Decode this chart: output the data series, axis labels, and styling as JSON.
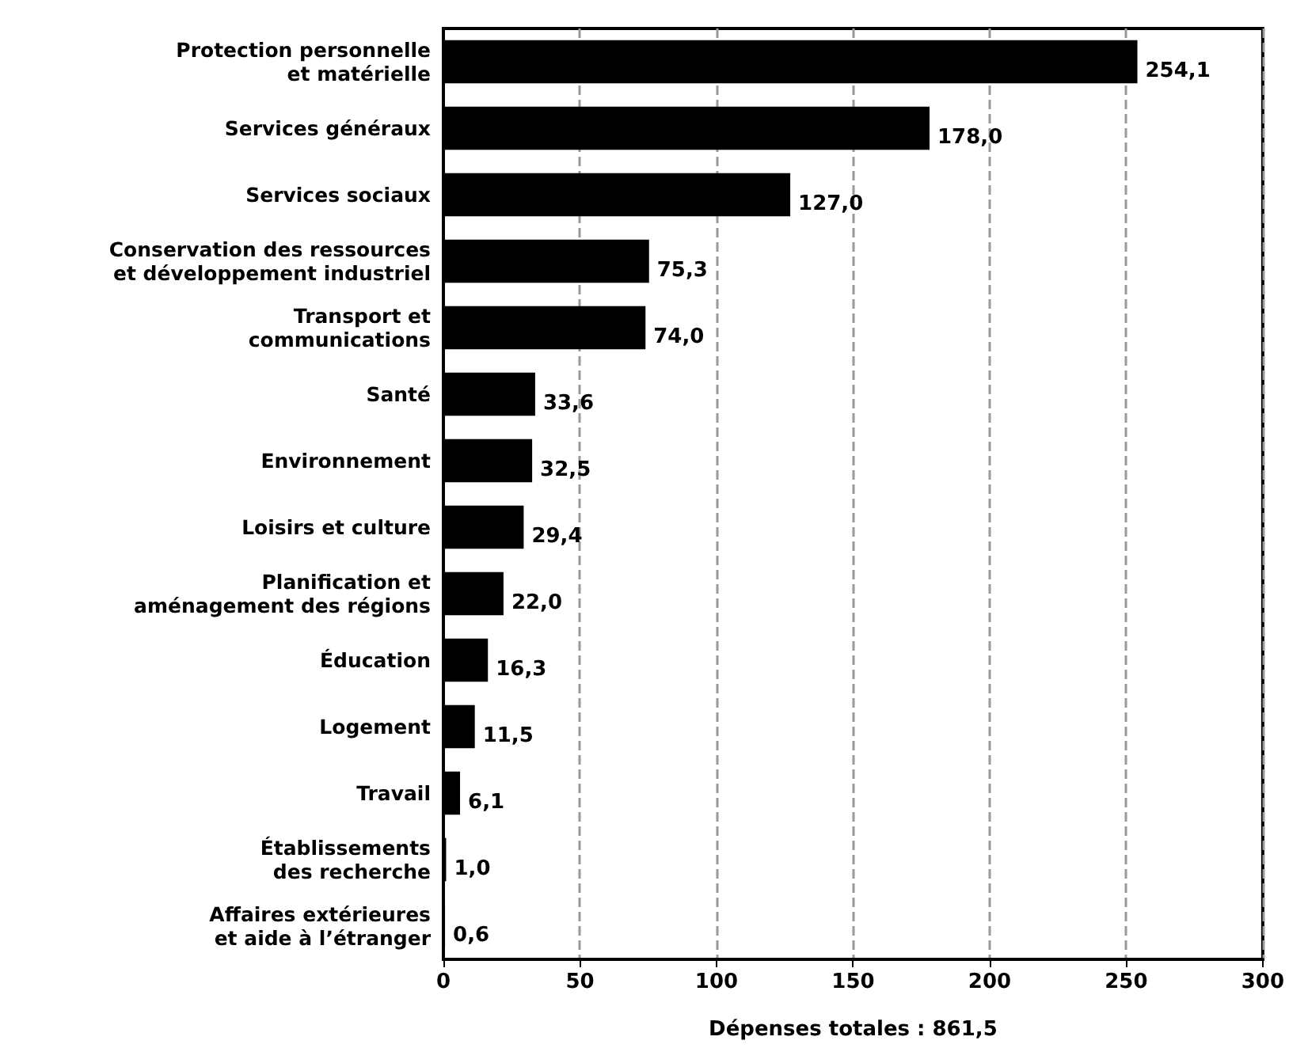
{
  "chart_data": {
    "type": "bar",
    "orientation": "horizontal",
    "xlabel": "Dépenses totales : 861,5",
    "categories": [
      "Protection personnelle\net matérielle",
      "Services généraux",
      "Services sociaux",
      "Conservation des ressources\net développement industriel",
      "Transport et\ncommunications",
      "Santé",
      "Environnement",
      "Loisirs et culture",
      "Planification et\naménagement des régions",
      "Éducation",
      "Logement",
      "Travail",
      "Établissements\ndes recherche",
      "Affaires extérieures\net aide à l’étranger"
    ],
    "values": [
      254.1,
      178.0,
      127.0,
      75.3,
      74.0,
      33.6,
      32.5,
      29.4,
      22.0,
      16.3,
      11.5,
      6.1,
      1.0,
      0.6
    ],
    "value_labels": [
      "254,1",
      "178,0",
      "127,0",
      "75,3",
      "74,0",
      "33,6",
      "32,5",
      "29,4",
      "22,0",
      "16,3",
      "11,5",
      "6,1",
      "1,0",
      "0,6"
    ],
    "color": "#000000",
    "xlim": [
      0,
      300
    ],
    "xticks": [
      0,
      50,
      100,
      150,
      200,
      250,
      300
    ],
    "grid": "x"
  }
}
